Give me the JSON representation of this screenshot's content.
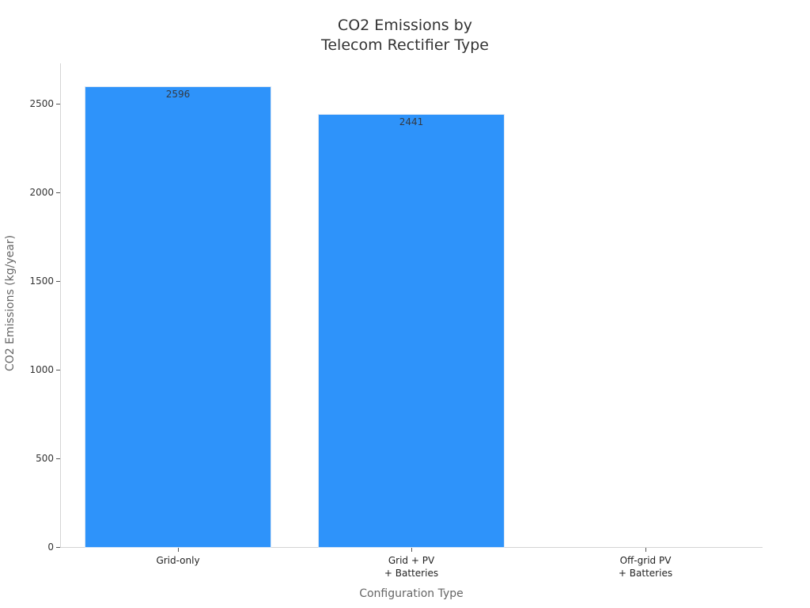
{
  "chart_data": {
    "type": "bar",
    "title": "CO2 Emissions by Telecom Rectifier Type",
    "title_lines": [
      "CO2 Emissions by",
      "Telecom Rectifier Type"
    ],
    "xlabel": "Configuration Type",
    "ylabel": "CO2 Emissions (kg/year)",
    "categories": [
      "Grid-only",
      "Grid + PV + Batteries",
      "Off-grid PV + Batteries"
    ],
    "category_lines": [
      [
        "Grid-only"
      ],
      [
        "Grid + PV",
        "+ Batteries"
      ],
      [
        "Off-grid PV",
        "+ Batteries"
      ]
    ],
    "values": [
      2596,
      2441,
      0
    ],
    "data_labels": [
      "2596",
      "2441",
      ""
    ],
    "ylim": [
      0,
      2730
    ],
    "yticks": [
      0,
      500,
      1000,
      1500,
      2000,
      2500
    ],
    "grid": false,
    "legend": "none",
    "bar_color": "#2e93fa"
  }
}
